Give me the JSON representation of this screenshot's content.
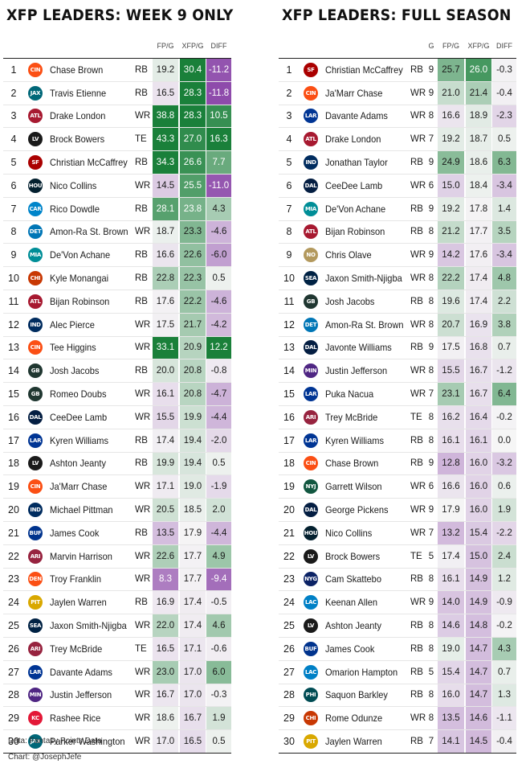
{
  "footer": {
    "source": "Data: Fantasy Points Data",
    "credit": "Chart: @JosephJefe"
  },
  "teams": {
    "CIN": {
      "color": "#fb4f14",
      "abbr": "CIN"
    },
    "JAX": {
      "color": "#006778",
      "abbr": "JAX"
    },
    "ATL": {
      "color": "#a71930",
      "abbr": "ATL"
    },
    "LV": {
      "color": "#1a1a1a",
      "abbr": "LV"
    },
    "SF": {
      "color": "#aa0000",
      "abbr": "SF"
    },
    "HOU": {
      "color": "#03202f",
      "abbr": "HOU"
    },
    "CAR": {
      "color": "#0085ca",
      "abbr": "CAR"
    },
    "DET": {
      "color": "#0076b6",
      "abbr": "DET"
    },
    "MIA": {
      "color": "#008e97",
      "abbr": "MIA"
    },
    "CHI": {
      "color": "#c83803",
      "abbr": "CHI"
    },
    "IND": {
      "color": "#002c5f",
      "abbr": "IND"
    },
    "GB": {
      "color": "#203731",
      "abbr": "GB"
    },
    "DAL": {
      "color": "#041e42",
      "abbr": "DAL"
    },
    "LAR": {
      "color": "#003594",
      "abbr": "LAR"
    },
    "BUF": {
      "color": "#00338d",
      "abbr": "BUF"
    },
    "ARI": {
      "color": "#97233f",
      "abbr": "ARI"
    },
    "DEN": {
      "color": "#fb4f14",
      "abbr": "DEN"
    },
    "PIT": {
      "color": "#d9a800",
      "abbr": "PIT"
    },
    "SEA": {
      "color": "#002244",
      "abbr": "SEA"
    },
    "MIN": {
      "color": "#4f2683",
      "abbr": "MIN"
    },
    "KC": {
      "color": "#e31837",
      "abbr": "KC"
    },
    "NO": {
      "color": "#b3995d",
      "abbr": "NO"
    },
    "NYJ": {
      "color": "#125740",
      "abbr": "NYJ"
    },
    "NYG": {
      "color": "#0b2265",
      "abbr": "NYG"
    },
    "LAC": {
      "color": "#0080c6",
      "abbr": "LAC"
    },
    "PHI": {
      "color": "#004c54",
      "abbr": "PHI"
    }
  },
  "chart_data": [
    {
      "type": "table",
      "title": "XFP LEADERS: WEEK 9 ONLY",
      "columns": [
        "",
        "",
        "",
        "",
        "FP/G",
        "XFP/G",
        "DIFF"
      ],
      "rows": [
        {
          "rank": "1",
          "team": "CIN",
          "player": "Chase Brown",
          "pos": "RB",
          "fpg": 19.2,
          "xfpg": 30.4,
          "diff": -11.2
        },
        {
          "rank": "2",
          "team": "JAX",
          "player": "Travis Etienne",
          "pos": "RB",
          "fpg": 16.5,
          "xfpg": 28.3,
          "diff": -11.8
        },
        {
          "rank": "3",
          "team": "ATL",
          "player": "Drake London",
          "pos": "WR",
          "fpg": 38.8,
          "xfpg": 28.3,
          "diff": 10.5
        },
        {
          "rank": "4",
          "team": "LV",
          "player": "Brock Bowers",
          "pos": "TE",
          "fpg": 43.3,
          "xfpg": 27.0,
          "diff": 16.3
        },
        {
          "rank": "5",
          "team": "SF",
          "player": "Christian McCaffrey",
          "pos": "RB",
          "fpg": 34.3,
          "xfpg": 26.6,
          "diff": 7.7
        },
        {
          "rank": "6",
          "team": "HOU",
          "player": "Nico Collins",
          "pos": "WR",
          "fpg": 14.5,
          "xfpg": 25.5,
          "diff": -11.0
        },
        {
          "rank": "7",
          "team": "CAR",
          "player": "Rico Dowdle",
          "pos": "RB",
          "fpg": 28.1,
          "xfpg": 23.8,
          "diff": 4.3
        },
        {
          "rank": "8",
          "team": "DET",
          "player": "Amon-Ra St. Brown",
          "pos": "WR",
          "fpg": 18.7,
          "xfpg": 23.3,
          "diff": -4.6
        },
        {
          "rank": "9",
          "team": "MIA",
          "player": "De'Von Achane",
          "pos": "RB",
          "fpg": 16.6,
          "xfpg": 22.6,
          "diff": -6.0
        },
        {
          "rank": "10",
          "team": "CHI",
          "player": "Kyle Monangai",
          "pos": "RB",
          "fpg": 22.8,
          "xfpg": 22.3,
          "diff": 0.5
        },
        {
          "rank": "11",
          "team": "ATL",
          "player": "Bijan Robinson",
          "pos": "RB",
          "fpg": 17.6,
          "xfpg": 22.2,
          "diff": -4.6
        },
        {
          "rank": "12",
          "team": "IND",
          "player": "Alec Pierce",
          "pos": "WR",
          "fpg": 17.5,
          "xfpg": 21.7,
          "diff": -4.2
        },
        {
          "rank": "13",
          "team": "CIN",
          "player": "Tee Higgins",
          "pos": "WR",
          "fpg": 33.1,
          "xfpg": 20.9,
          "diff": 12.2
        },
        {
          "rank": "14",
          "team": "GB",
          "player": "Josh Jacobs",
          "pos": "RB",
          "fpg": 20.0,
          "xfpg": 20.8,
          "diff": -0.8
        },
        {
          "rank": "15",
          "team": "GB",
          "player": "Romeo Doubs",
          "pos": "WR",
          "fpg": 16.1,
          "xfpg": 20.8,
          "diff": -4.7
        },
        {
          "rank": "16",
          "team": "DAL",
          "player": "CeeDee Lamb",
          "pos": "WR",
          "fpg": 15.5,
          "xfpg": 19.9,
          "diff": -4.4
        },
        {
          "rank": "17",
          "team": "LAR",
          "player": "Kyren Williams",
          "pos": "RB",
          "fpg": 17.4,
          "xfpg": 19.4,
          "diff": -2.0
        },
        {
          "rank": "18",
          "team": "LV",
          "player": "Ashton Jeanty",
          "pos": "RB",
          "fpg": 19.9,
          "xfpg": 19.4,
          "diff": 0.5
        },
        {
          "rank": "19",
          "team": "CIN",
          "player": "Ja'Marr Chase",
          "pos": "WR",
          "fpg": 17.1,
          "xfpg": 19.0,
          "diff": -1.9
        },
        {
          "rank": "20",
          "team": "IND",
          "player": "Michael Pittman",
          "pos": "WR",
          "fpg": 20.5,
          "xfpg": 18.5,
          "diff": 2.0
        },
        {
          "rank": "21",
          "team": "BUF",
          "player": "James Cook",
          "pos": "RB",
          "fpg": 13.5,
          "xfpg": 17.9,
          "diff": -4.4
        },
        {
          "rank": "22",
          "team": "ARI",
          "player": "Marvin Harrison",
          "pos": "WR",
          "fpg": 22.6,
          "xfpg": 17.7,
          "diff": 4.9
        },
        {
          "rank": "23",
          "team": "DEN",
          "player": "Troy Franklin",
          "pos": "WR",
          "fpg": 8.3,
          "xfpg": 17.7,
          "diff": -9.4
        },
        {
          "rank": "24",
          "team": "PIT",
          "player": "Jaylen Warren",
          "pos": "RB",
          "fpg": 16.9,
          "xfpg": 17.4,
          "diff": -0.5
        },
        {
          "rank": "25",
          "team": "SEA",
          "player": "Jaxon Smith-Njigba",
          "pos": "WR",
          "fpg": 22.0,
          "xfpg": 17.4,
          "diff": 4.6
        },
        {
          "rank": "26",
          "team": "ARI",
          "player": "Trey McBride",
          "pos": "TE",
          "fpg": 16.5,
          "xfpg": 17.1,
          "diff": -0.6
        },
        {
          "rank": "27",
          "team": "LAR",
          "player": "Davante Adams",
          "pos": "WR",
          "fpg": 23.0,
          "xfpg": 17.0,
          "diff": 6.0
        },
        {
          "rank": "28",
          "team": "MIN",
          "player": "Justin Jefferson",
          "pos": "WR",
          "fpg": 16.7,
          "xfpg": 17.0,
          "diff": -0.3
        },
        {
          "rank": "29",
          "team": "KC",
          "player": "Rashee Rice",
          "pos": "WR",
          "fpg": 18.6,
          "xfpg": 16.7,
          "diff": 1.9
        },
        {
          "rank": "30",
          "team": "JAX",
          "player": "Parker Washington",
          "pos": "WR",
          "fpg": 17.0,
          "xfpg": 16.5,
          "diff": 0.5
        }
      ]
    },
    {
      "type": "table",
      "title": "XFP LEADERS: FULL SEASON",
      "columns": [
        "",
        "",
        "",
        "",
        "G",
        "FP/G",
        "XFP/G",
        "DIFF"
      ],
      "rows": [
        {
          "rank": "1",
          "team": "SF",
          "player": "Christian McCaffrey",
          "pos": "RB",
          "g": 9,
          "fpg": 25.7,
          "xfpg": 26.0,
          "diff": -0.3
        },
        {
          "rank": "2",
          "team": "CIN",
          "player": "Ja'Marr Chase",
          "pos": "WR",
          "g": 9,
          "fpg": 21.0,
          "xfpg": 21.4,
          "diff": -0.4
        },
        {
          "rank": "3",
          "team": "LAR",
          "player": "Davante Adams",
          "pos": "WR",
          "g": 8,
          "fpg": 16.6,
          "xfpg": 18.9,
          "diff": -2.3
        },
        {
          "rank": "4",
          "team": "ATL",
          "player": "Drake London",
          "pos": "WR",
          "g": 7,
          "fpg": 19.2,
          "xfpg": 18.7,
          "diff": 0.5
        },
        {
          "rank": "5",
          "team": "IND",
          "player": "Jonathan Taylor",
          "pos": "RB",
          "g": 9,
          "fpg": 24.9,
          "xfpg": 18.6,
          "diff": 6.3
        },
        {
          "rank": "6",
          "team": "DAL",
          "player": "CeeDee Lamb",
          "pos": "WR",
          "g": 6,
          "fpg": 15.0,
          "xfpg": 18.4,
          "diff": -3.4
        },
        {
          "rank": "7",
          "team": "MIA",
          "player": "De'Von Achane",
          "pos": "RB",
          "g": 9,
          "fpg": 19.2,
          "xfpg": 17.8,
          "diff": 1.4
        },
        {
          "rank": "8",
          "team": "ATL",
          "player": "Bijan Robinson",
          "pos": "RB",
          "g": 8,
          "fpg": 21.2,
          "xfpg": 17.7,
          "diff": 3.5
        },
        {
          "rank": "9",
          "team": "NO",
          "player": "Chris Olave",
          "pos": "WR",
          "g": 9,
          "fpg": 14.2,
          "xfpg": 17.6,
          "diff": -3.4
        },
        {
          "rank": "10",
          "team": "SEA",
          "player": "Jaxon Smith-Njigba",
          "pos": "WR",
          "g": 8,
          "fpg": 22.2,
          "xfpg": 17.4,
          "diff": 4.8
        },
        {
          "rank": "11",
          "team": "GB",
          "player": "Josh Jacobs",
          "pos": "RB",
          "g": 8,
          "fpg": 19.6,
          "xfpg": 17.4,
          "diff": 2.2
        },
        {
          "rank": "12",
          "team": "DET",
          "player": "Amon-Ra St. Brown",
          "pos": "WR",
          "g": 8,
          "fpg": 20.7,
          "xfpg": 16.9,
          "diff": 3.8
        },
        {
          "rank": "13",
          "team": "DAL",
          "player": "Javonte Williams",
          "pos": "RB",
          "g": 9,
          "fpg": 17.5,
          "xfpg": 16.8,
          "diff": 0.7
        },
        {
          "rank": "14",
          "team": "MIN",
          "player": "Justin Jefferson",
          "pos": "WR",
          "g": 8,
          "fpg": 15.5,
          "xfpg": 16.7,
          "diff": -1.2
        },
        {
          "rank": "15",
          "team": "LAR",
          "player": "Puka Nacua",
          "pos": "WR",
          "g": 7,
          "fpg": 23.1,
          "xfpg": 16.7,
          "diff": 6.4
        },
        {
          "rank": "16",
          "team": "ARI",
          "player": "Trey McBride",
          "pos": "TE",
          "g": 8,
          "fpg": 16.2,
          "xfpg": 16.4,
          "diff": -0.2
        },
        {
          "rank": "17",
          "team": "LAR",
          "player": "Kyren Williams",
          "pos": "RB",
          "g": 8,
          "fpg": 16.1,
          "xfpg": 16.1,
          "diff": 0.0
        },
        {
          "rank": "18",
          "team": "CIN",
          "player": "Chase Brown",
          "pos": "RB",
          "g": 9,
          "fpg": 12.8,
          "xfpg": 16.0,
          "diff": -3.2
        },
        {
          "rank": "19",
          "team": "NYJ",
          "player": "Garrett Wilson",
          "pos": "WR",
          "g": 6,
          "fpg": 16.6,
          "xfpg": 16.0,
          "diff": 0.6
        },
        {
          "rank": "20",
          "team": "DAL",
          "player": "George Pickens",
          "pos": "WR",
          "g": 9,
          "fpg": 17.9,
          "xfpg": 16.0,
          "diff": 1.9
        },
        {
          "rank": "21",
          "team": "HOU",
          "player": "Nico Collins",
          "pos": "WR",
          "g": 7,
          "fpg": 13.2,
          "xfpg": 15.4,
          "diff": -2.2
        },
        {
          "rank": "22",
          "team": "LV",
          "player": "Brock Bowers",
          "pos": "TE",
          "g": 5,
          "fpg": 17.4,
          "xfpg": 15.0,
          "diff": 2.4
        },
        {
          "rank": "23",
          "team": "NYG",
          "player": "Cam Skattebo",
          "pos": "RB",
          "g": 8,
          "fpg": 16.1,
          "xfpg": 14.9,
          "diff": 1.2
        },
        {
          "rank": "24",
          "team": "LAC",
          "player": "Keenan Allen",
          "pos": "WR",
          "g": 9,
          "fpg": 14.0,
          "xfpg": 14.9,
          "diff": -0.9
        },
        {
          "rank": "25",
          "team": "LV",
          "player": "Ashton Jeanty",
          "pos": "RB",
          "g": 8,
          "fpg": 14.6,
          "xfpg": 14.8,
          "diff": -0.2
        },
        {
          "rank": "26",
          "team": "BUF",
          "player": "James Cook",
          "pos": "RB",
          "g": 8,
          "fpg": 19.0,
          "xfpg": 14.7,
          "diff": 4.3
        },
        {
          "rank": "27",
          "team": "LAC",
          "player": "Omarion Hampton",
          "pos": "RB",
          "g": 5,
          "fpg": 15.4,
          "xfpg": 14.7,
          "diff": 0.7
        },
        {
          "rank": "28",
          "team": "PHI",
          "player": "Saquon Barkley",
          "pos": "RB",
          "g": 8,
          "fpg": 16.0,
          "xfpg": 14.7,
          "diff": 1.3
        },
        {
          "rank": "29",
          "team": "CHI",
          "player": "Rome Odunze",
          "pos": "WR",
          "g": 8,
          "fpg": 13.5,
          "xfpg": 14.6,
          "diff": -1.1
        },
        {
          "rank": "30",
          "team": "PIT",
          "player": "Jaylen Warren",
          "pos": "RB",
          "g": 7,
          "fpg": 14.1,
          "xfpg": 14.5,
          "diff": -0.4
        }
      ]
    }
  ]
}
